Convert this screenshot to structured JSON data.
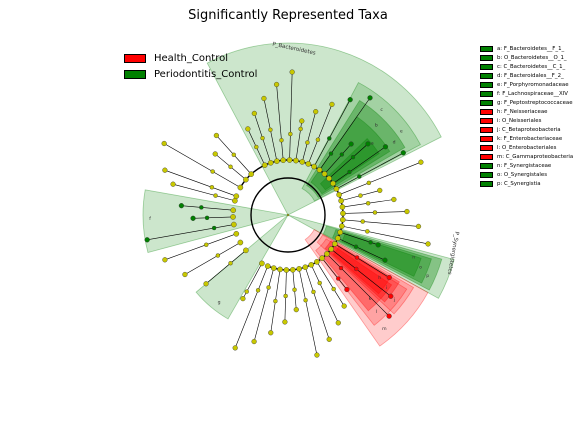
{
  "title": "Significantly Represented Taxa",
  "colors": {
    "health": "#ff0000",
    "periodontitis": "#008000",
    "node_default": "#c8c800"
  },
  "legend": [
    {
      "label": "Health_Control",
      "color": "#ff0000"
    },
    {
      "label": "Periodontitis_Control",
      "color": "#008000"
    }
  ],
  "clade_labels": {
    "bacteroidetes": "P_Bacteroidetes",
    "synergistetes": "P_Synergistetes"
  },
  "key": [
    {
      "label": "a: F_Bacteroidetes__F_1_",
      "color": "#008000"
    },
    {
      "label": "b: O_Bacteroidetes__O_1_",
      "color": "#008000"
    },
    {
      "label": "c: C_Bacteroidetes__C_1_",
      "color": "#008000"
    },
    {
      "label": "d: F_Bacteroidales__F_2_",
      "color": "#008000"
    },
    {
      "label": "e: F_Porphyromonadaceae",
      "color": "#008000"
    },
    {
      "label": "f: F_Lachnospiraceae__XIV",
      "color": "#008000"
    },
    {
      "label": "g: F_Peptostreptococcaceae",
      "color": "#008000"
    },
    {
      "label": "h: F_Neisseriaceae",
      "color": "#ff0000"
    },
    {
      "label": "i: O_Neisseriales",
      "color": "#ff0000"
    },
    {
      "label": "j: C_Betaproteobacteria",
      "color": "#ff0000"
    },
    {
      "label": "k: F_Enterobacteriaceae",
      "color": "#ff0000"
    },
    {
      "label": "l: O_Enterobacteriales",
      "color": "#ff0000"
    },
    {
      "label": "m: C_Gammaproteobacteria",
      "color": "#ff0000"
    },
    {
      "label": "n: F_Synergistaceae",
      "color": "#008000"
    },
    {
      "label": "o: O_Synergistales",
      "color": "#008000"
    },
    {
      "label": "p: C_Synergistia",
      "color": "#008000"
    }
  ],
  "sector_letters": {
    "bacteroidetes": [
      "a",
      "b",
      "c",
      "d",
      "e"
    ],
    "synergistetes": [
      "n",
      "o",
      "p"
    ],
    "proteo": [
      "h",
      "i",
      "j",
      "k",
      "l",
      "m"
    ],
    "other": [
      "g",
      "f"
    ]
  }
}
